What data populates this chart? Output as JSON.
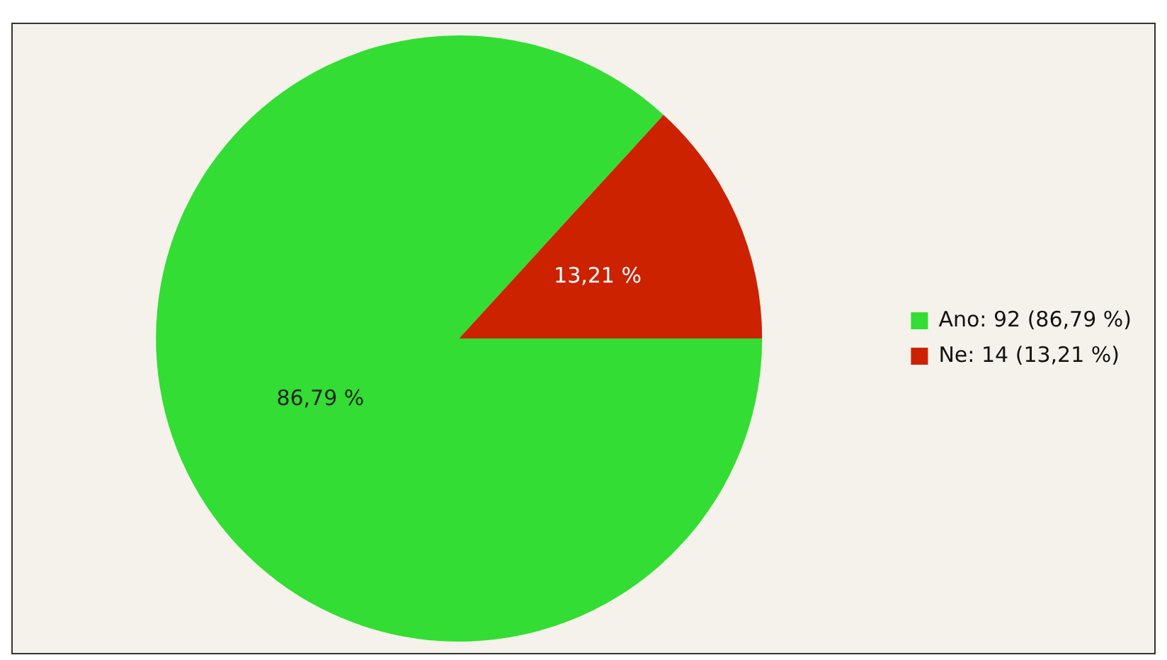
{
  "chart_data": {
    "type": "pie",
    "categories": [
      "Ano: 92 (86,79 %)",
      "Ne: 14 (13,21 %)"
    ],
    "values": [
      86.79,
      13.21
    ],
    "colors": [
      "#33dd33",
      "#cc2200"
    ],
    "value_labels": [
      "86,79 %",
      "13,21 %"
    ],
    "legend": "right"
  }
}
